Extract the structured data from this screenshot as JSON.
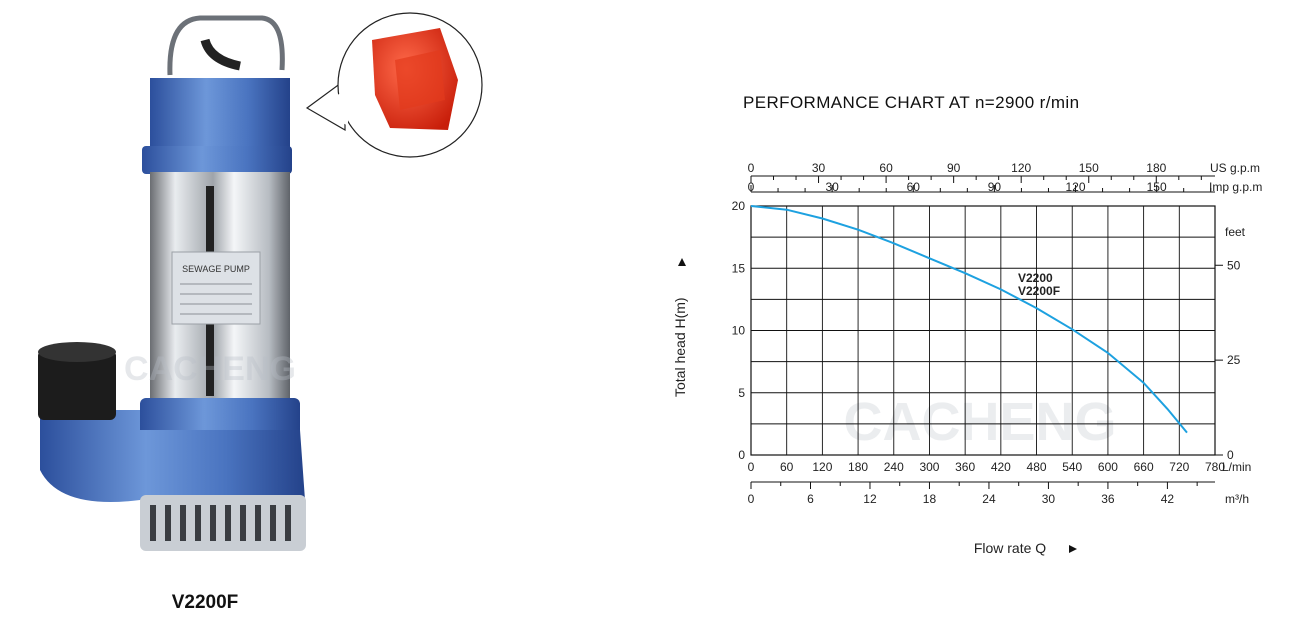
{
  "product": {
    "model": "V2200F",
    "nameplate": "SEWAGE PUMP",
    "watermark": "CACHENG"
  },
  "chart_data": {
    "type": "line",
    "title": "PERFORMANCE CHART AT n=2900 r/min",
    "xlabel": "Flow rate Q",
    "ylabel": "Total head H(m)",
    "x_unit": "L/min",
    "xlim": [
      0,
      780
    ],
    "ylim": [
      0,
      20
    ],
    "x_ticks": [
      "0",
      "60",
      "120",
      "180",
      "240",
      "300",
      "360",
      "420",
      "480",
      "540",
      "600",
      "660",
      "720",
      "780"
    ],
    "y_ticks": [
      "0",
      "5",
      "10",
      "15",
      "20"
    ],
    "secondary_axes": {
      "us_gpm": {
        "label": "US g.p.m",
        "ticks": [
          "0",
          "30",
          "60",
          "90",
          "120",
          "150",
          "180"
        ]
      },
      "imp_gpm": {
        "label": "Imp g.p.m",
        "ticks": [
          "0",
          "30",
          "60",
          "90",
          "120",
          "150"
        ]
      },
      "m3h": {
        "label": "m³/h",
        "ticks": [
          "0",
          "6",
          "12",
          "18",
          "24",
          "30",
          "36",
          "42"
        ]
      },
      "feet": {
        "label": "feet",
        "ticks": [
          "0",
          "25",
          "50"
        ]
      }
    },
    "legend": [
      "V2200",
      "V2200F"
    ],
    "grid": true,
    "series": [
      {
        "name": "V2200 / V2200F",
        "color": "#1da1e0",
        "x": [
          0,
          60,
          120,
          180,
          240,
          300,
          360,
          420,
          480,
          540,
          600,
          660,
          700,
          733
        ],
        "y": [
          20,
          19.7,
          19.0,
          18.1,
          17.0,
          15.8,
          14.6,
          13.3,
          11.8,
          10.1,
          8.2,
          5.8,
          3.7,
          1.8
        ]
      }
    ]
  }
}
